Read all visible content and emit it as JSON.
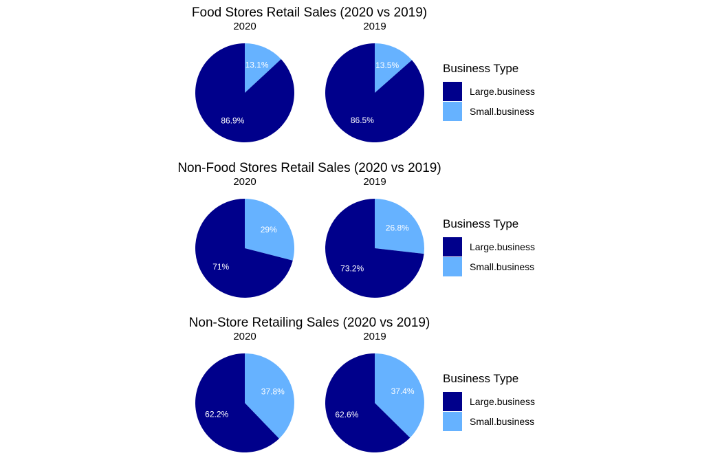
{
  "colors": {
    "Large.business": "#00008B",
    "Small.business": "#66B2FF",
    "slice_label": "#FFFFFF"
  },
  "chart_data": [
    {
      "type": "pie",
      "title": "Food Stores Retail Sales (2020 vs 2019)",
      "legend": {
        "title": "Business Type",
        "entries": [
          "Large.business",
          "Small.business"
        ],
        "position": "right"
      },
      "facets": [
        {
          "label": "2020",
          "slices": [
            {
              "name": "Small.business",
              "value": 13.1,
              "label": "13.1%"
            },
            {
              "name": "Large.business",
              "value": 86.9,
              "label": "86.9%"
            }
          ]
        },
        {
          "label": "2019",
          "slices": [
            {
              "name": "Small.business",
              "value": 13.5,
              "label": "13.5%"
            },
            {
              "name": "Large.business",
              "value": 86.5,
              "label": "86.5%"
            }
          ]
        }
      ]
    },
    {
      "type": "pie",
      "title": "Non-Food Stores Retail Sales (2020 vs 2019)",
      "legend": {
        "title": "Business Type",
        "entries": [
          "Large.business",
          "Small.business"
        ],
        "position": "right"
      },
      "facets": [
        {
          "label": "2020",
          "slices": [
            {
              "name": "Small.business",
              "value": 29,
              "label": "29%"
            },
            {
              "name": "Large.business",
              "value": 71,
              "label": "71%"
            }
          ]
        },
        {
          "label": "2019",
          "slices": [
            {
              "name": "Small.business",
              "value": 26.8,
              "label": "26.8%"
            },
            {
              "name": "Large.business",
              "value": 73.2,
              "label": "73.2%"
            }
          ]
        }
      ]
    },
    {
      "type": "pie",
      "title": "Non-Store Retailing Sales (2020 vs 2019)",
      "legend": {
        "title": "Business Type",
        "entries": [
          "Large.business",
          "Small.business"
        ],
        "position": "right"
      },
      "facets": [
        {
          "label": "2020",
          "slices": [
            {
              "name": "Small.business",
              "value": 37.8,
              "label": "37.8%"
            },
            {
              "name": "Large.business",
              "value": 62.2,
              "label": "62.2%"
            }
          ]
        },
        {
          "label": "2019",
          "slices": [
            {
              "name": "Small.business",
              "value": 37.4,
              "label": "37.4%"
            },
            {
              "name": "Large.business",
              "value": 62.6,
              "label": "62.6%"
            }
          ]
        }
      ]
    }
  ]
}
